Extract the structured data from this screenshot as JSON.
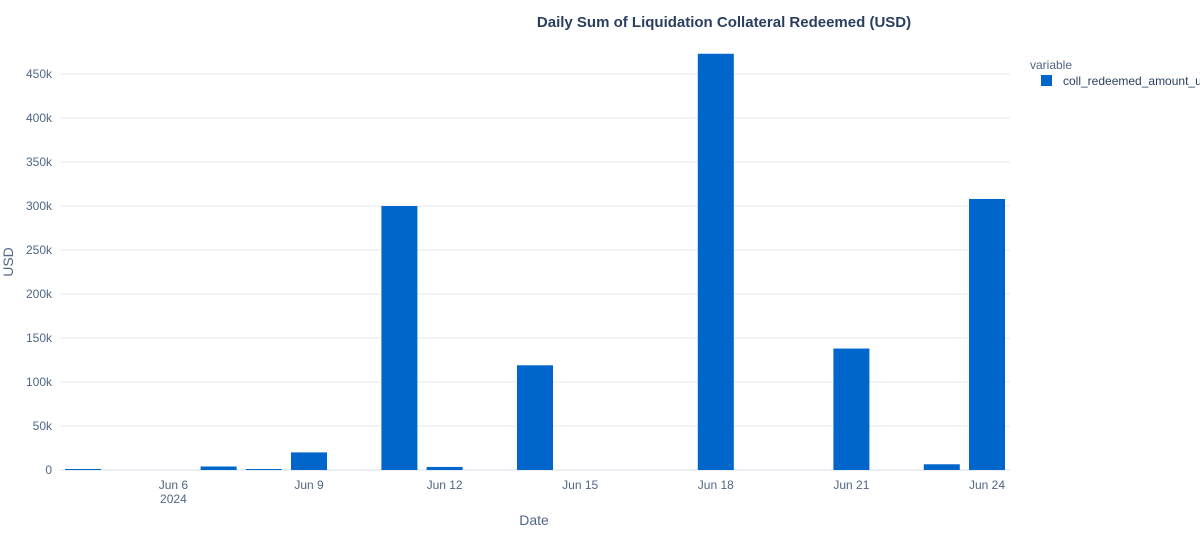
{
  "chart_data": {
    "type": "bar",
    "title": "Daily Sum of Liquidation Collateral Redeemed (USD)",
    "xlabel": "Date",
    "ylabel": "USD",
    "x_start": "2024-06-04",
    "ylim": [
      0,
      475000
    ],
    "yticks": [
      0,
      50000,
      100000,
      150000,
      200000,
      250000,
      300000,
      350000,
      400000,
      450000
    ],
    "ytick_labels": [
      "0",
      "50k",
      "100k",
      "150k",
      "200k",
      "250k",
      "300k",
      "350k",
      "400k",
      "450k"
    ],
    "xticks": [
      {
        "date": "2024-06-06",
        "label": "Jun 6",
        "sublabel": "2024"
      },
      {
        "date": "2024-06-09",
        "label": "Jun 9",
        "sublabel": ""
      },
      {
        "date": "2024-06-12",
        "label": "Jun 12",
        "sublabel": ""
      },
      {
        "date": "2024-06-15",
        "label": "Jun 15",
        "sublabel": ""
      },
      {
        "date": "2024-06-18",
        "label": "Jun 18",
        "sublabel": ""
      },
      {
        "date": "2024-06-21",
        "label": "Jun 21",
        "sublabel": ""
      },
      {
        "date": "2024-06-24",
        "label": "Jun 24",
        "sublabel": ""
      }
    ],
    "legend": {
      "title": "variable",
      "position": "top-right"
    },
    "grid": true,
    "series": [
      {
        "name": "coll_redeemed_amount_usd",
        "color": "#0066cc",
        "points": [
          {
            "date": "2024-06-04",
            "value": 500
          },
          {
            "date": "2024-06-07",
            "value": 4000
          },
          {
            "date": "2024-06-08",
            "value": 500
          },
          {
            "date": "2024-06-09",
            "value": 20000
          },
          {
            "date": "2024-06-11",
            "value": 300000
          },
          {
            "date": "2024-06-12",
            "value": 3500
          },
          {
            "date": "2024-06-14",
            "value": 119000
          },
          {
            "date": "2024-06-18",
            "value": 473000
          },
          {
            "date": "2024-06-21",
            "value": 138000
          },
          {
            "date": "2024-06-23",
            "value": 6500
          },
          {
            "date": "2024-06-24",
            "value": 308000
          }
        ]
      }
    ]
  }
}
